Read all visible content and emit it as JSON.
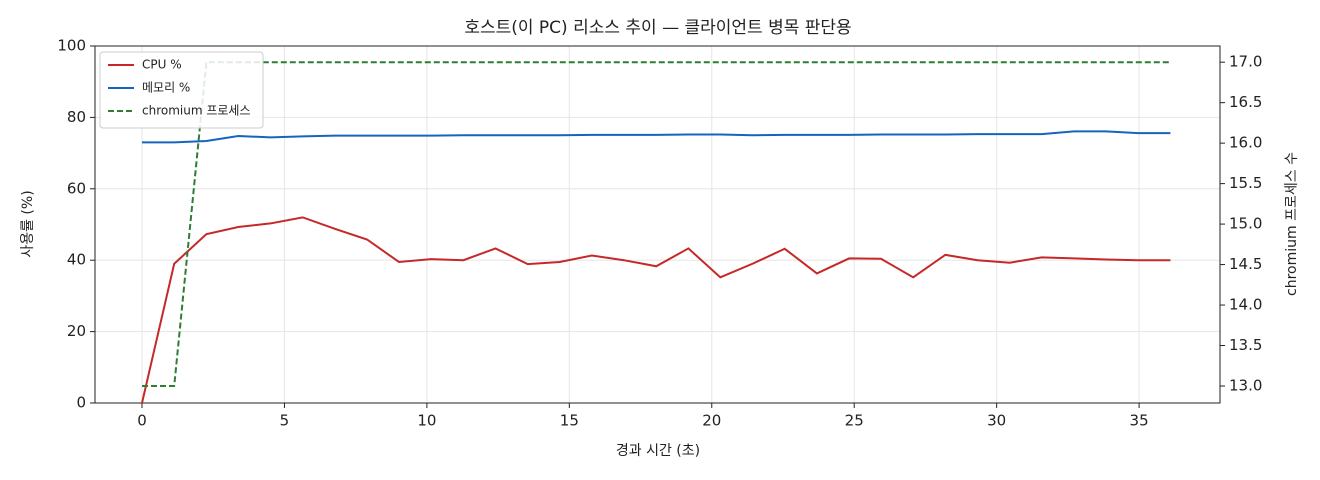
{
  "chart_data": {
    "type": "line",
    "title": "호스트(이 PC) 리소스 추이 — 클라이언트 병목 판단용",
    "x_label": "경과 시간 (초)",
    "y_label": "사용률 (%)",
    "y2_label": "chromium 프로세스 수",
    "x": [
      0,
      1.13,
      2.26,
      3.38,
      4.51,
      5.64,
      6.77,
      7.9,
      9.02,
      10.15,
      11.28,
      12.41,
      13.54,
      14.66,
      15.79,
      16.92,
      18.05,
      19.18,
      20.3,
      21.43,
      22.56,
      23.69,
      24.82,
      25.94,
      27.07,
      28.2,
      29.33,
      30.46,
      31.58,
      32.71,
      33.84,
      34.97,
      36.1
    ],
    "series": [
      {
        "name": "CPU %",
        "color": "#c62828",
        "dash": false,
        "values": [
          0,
          39,
          47.3,
          49.3,
          50.3,
          52,
          48.8,
          45.8,
          39.5,
          40.3,
          40,
          43.3,
          38.9,
          39.5,
          41.3,
          40,
          38.3,
          43.3,
          35.2,
          39,
          43.2,
          36.3,
          40.5,
          40.4,
          35.2,
          41.5,
          40,
          39.3,
          40.8,
          40.5,
          40.2,
          40,
          40
        ]
      },
      {
        "name": "메모리 %",
        "color": "#1565c0",
        "dash": false,
        "values": [
          73,
          73,
          73.4,
          74.8,
          74.4,
          74.7,
          74.9,
          74.9,
          74.9,
          74.9,
          75,
          75,
          75,
          75,
          75.1,
          75.1,
          75.1,
          75.2,
          75.2,
          75,
          75.1,
          75.1,
          75.1,
          75.2,
          75.2,
          75.2,
          75.3,
          75.3,
          75.3,
          76.1,
          76.1,
          75.6,
          75.6
        ]
      },
      {
        "name": "chromium 프로세스",
        "color": "#2e7d32",
        "dash": true,
        "axis": "y2",
        "values": [
          13,
          13,
          17,
          17,
          17,
          17,
          17,
          17,
          17,
          17,
          17,
          17,
          17,
          17,
          17,
          17,
          17,
          17,
          17,
          17,
          17,
          17,
          17,
          17,
          17,
          17,
          17,
          17,
          17,
          17,
          17,
          17,
          17
        ]
      }
    ],
    "xlim": [
      -1.65,
      37.84
    ],
    "xticks": [
      0,
      5,
      10,
      15,
      20,
      25,
      30,
      35
    ],
    "ylim": [
      0,
      100
    ],
    "yticks": [
      0,
      20,
      40,
      60,
      80,
      100
    ],
    "y2lim": [
      12.79,
      17.2
    ],
    "y2ticks": [
      {
        "value": 13,
        "label": "13.0"
      },
      {
        "value": 13.5,
        "label": "13.5"
      },
      {
        "value": 14,
        "label": "14.0"
      },
      {
        "value": 14.5,
        "label": "14.5"
      },
      {
        "value": 15,
        "label": "15.0"
      },
      {
        "value": 15.5,
        "label": "15.5"
      },
      {
        "value": 16,
        "label": "16.0"
      },
      {
        "value": 16.5,
        "label": "16.5"
      },
      {
        "value": 17,
        "label": "17.0"
      }
    ],
    "grid": true,
    "legend": "upper left"
  }
}
